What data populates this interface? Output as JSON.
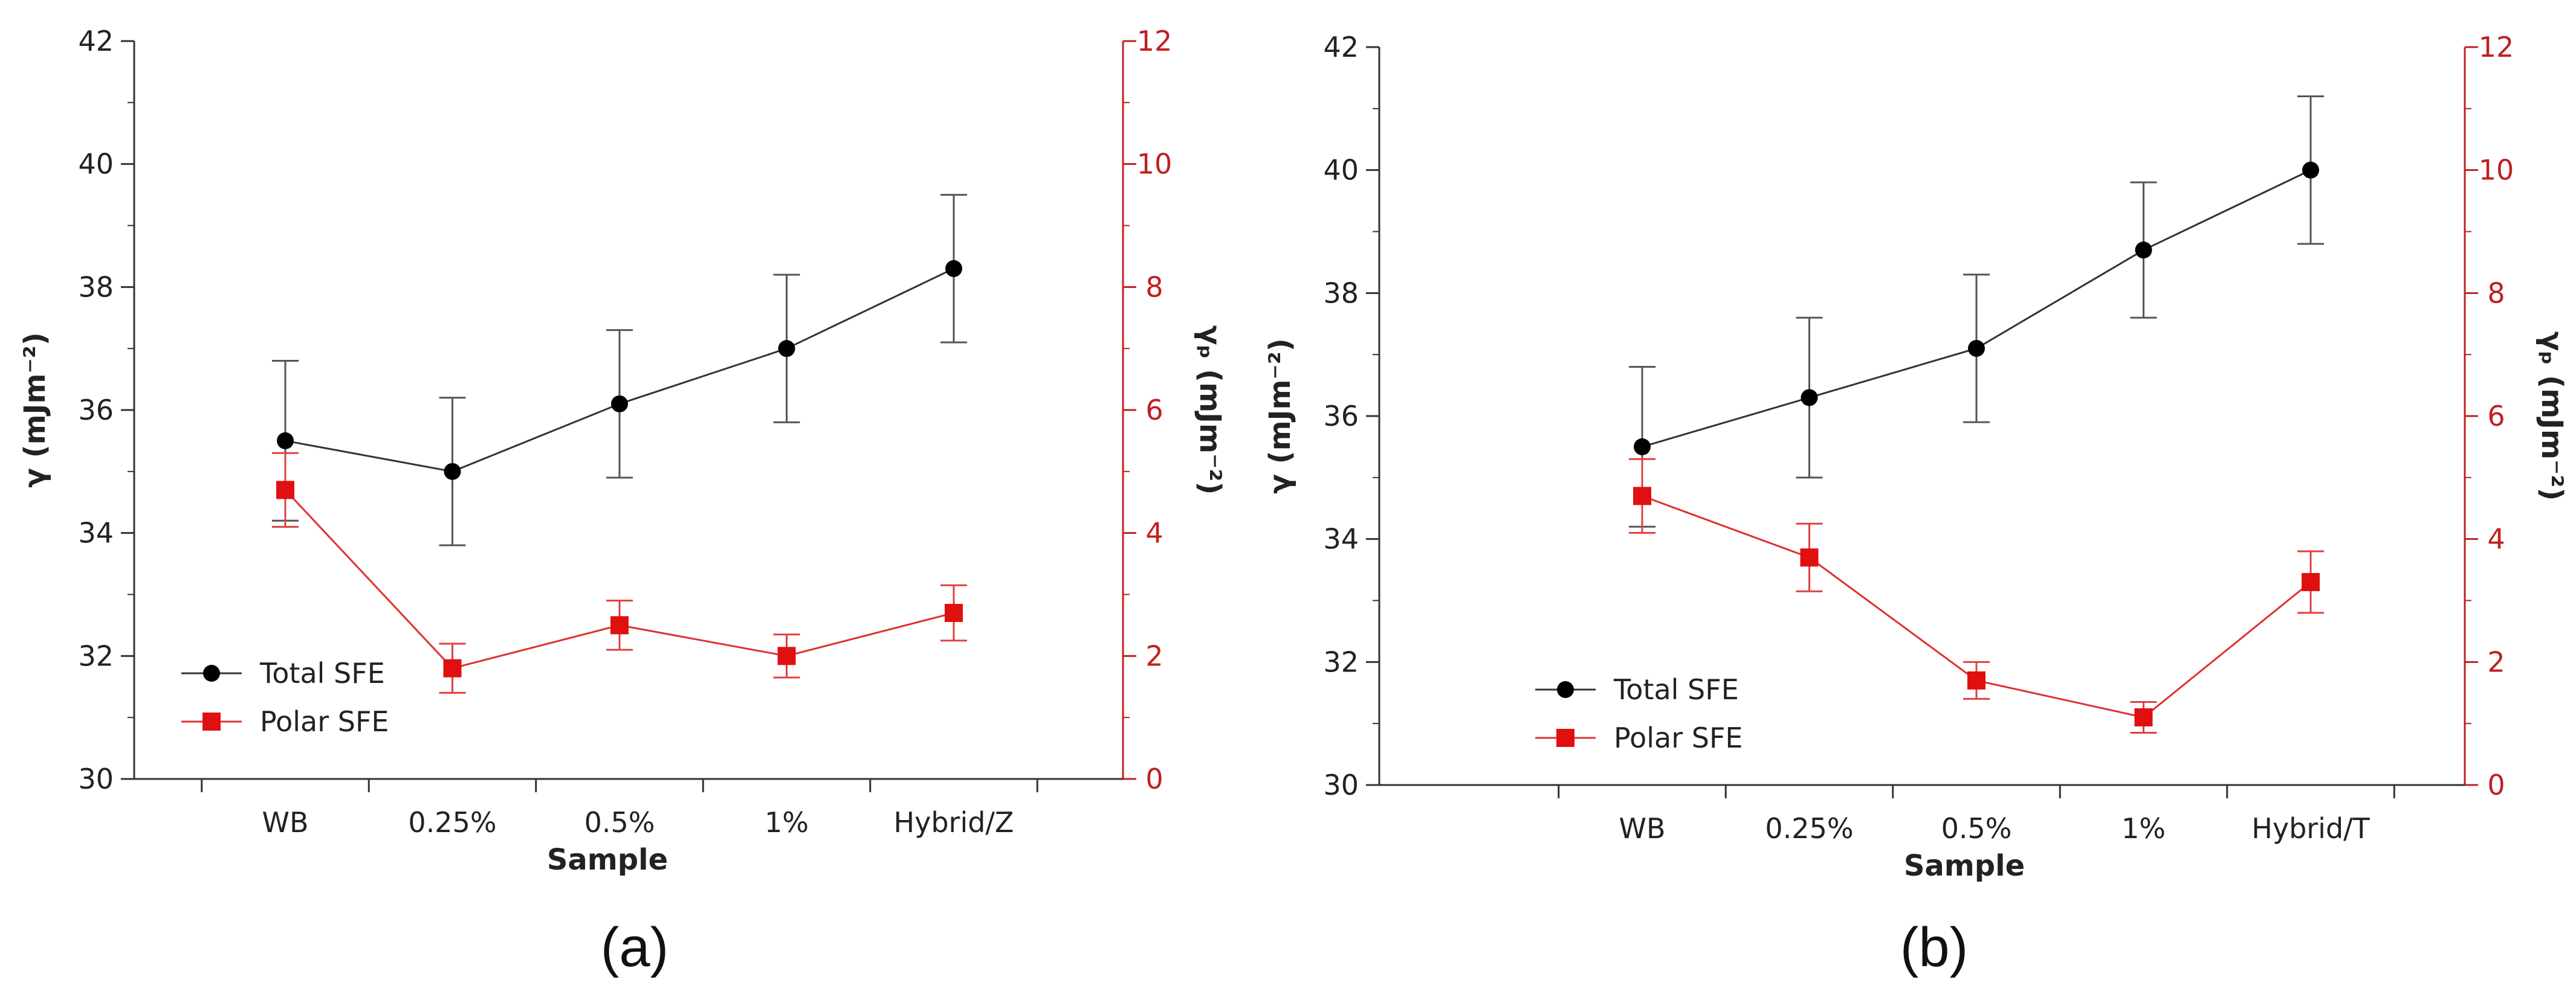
{
  "chart_data": [
    {
      "type": "line",
      "panel_label": "(a)",
      "xlabel": "Sample",
      "ylabel": "γ (mJm⁻²)",
      "ylabel_right": "γₚ (mJm⁻²)",
      "categories": [
        "WB",
        "0.25%",
        "0.5%",
        "1%",
        "Hybrid/Z"
      ],
      "ylim": [
        30,
        42
      ],
      "yticks": [
        "30",
        "32",
        "34",
        "36",
        "38",
        "40",
        "42"
      ],
      "ylim_right": [
        0,
        12
      ],
      "yticks_right": [
        "0",
        "2",
        "4",
        "6",
        "8",
        "10",
        "12"
      ],
      "legend": [
        "Total SFE",
        "Polar SFE"
      ],
      "series": [
        {
          "name": "Total SFE",
          "axis": "left",
          "color": "#000000",
          "marker": "circle",
          "values": [
            35.5,
            35.0,
            36.1,
            37.0,
            38.3
          ],
          "errors": [
            1.3,
            1.2,
            1.2,
            1.2,
            1.2
          ]
        },
        {
          "name": "Polar SFE",
          "axis": "right",
          "color": "#e01010",
          "marker": "square",
          "values": [
            4.7,
            1.8,
            2.5,
            2.0,
            2.7
          ],
          "errors": [
            0.6,
            0.4,
            0.4,
            0.35,
            0.45
          ]
        }
      ]
    },
    {
      "type": "line",
      "panel_label": "(b)",
      "xlabel": "Sample",
      "ylabel": "γ (mJm⁻²)",
      "ylabel_right": "γₚ (mJm⁻²)",
      "categories": [
        "WB",
        "0.25%",
        "0.5%",
        "1%",
        "Hybrid/T"
      ],
      "ylim": [
        30,
        42
      ],
      "yticks": [
        "30",
        "32",
        "34",
        "36",
        "38",
        "40",
        "42"
      ],
      "ylim_right": [
        0,
        12
      ],
      "yticks_right": [
        "0",
        "2",
        "4",
        "6",
        "8",
        "10",
        "12"
      ],
      "legend": [
        "Total SFE",
        "Polar SFE"
      ],
      "series": [
        {
          "name": "Total SFE",
          "axis": "left",
          "color": "#000000",
          "marker": "circle",
          "values": [
            35.5,
            36.3,
            37.1,
            38.7,
            40.0
          ],
          "errors": [
            1.3,
            1.3,
            1.2,
            1.1,
            1.2
          ]
        },
        {
          "name": "Polar SFE",
          "axis": "right",
          "color": "#e01010",
          "marker": "square",
          "values": [
            4.7,
            3.7,
            1.7,
            1.1,
            3.3
          ],
          "errors": [
            0.6,
            0.55,
            0.3,
            0.25,
            0.5
          ]
        }
      ]
    }
  ]
}
